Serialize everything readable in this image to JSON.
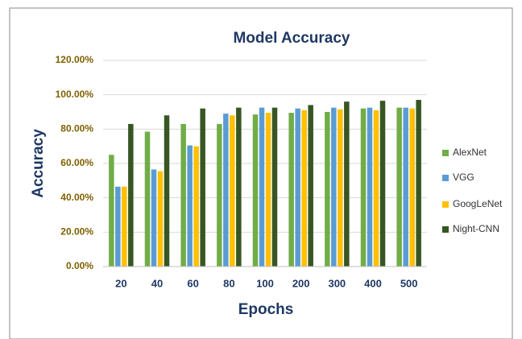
{
  "chart_data": {
    "type": "bar",
    "title": "Model Accuracy",
    "x_label": "Epochs",
    "y_label": "Accuracy",
    "categories": [
      "20",
      "40",
      "60",
      "80",
      "100",
      "200",
      "300",
      "400",
      "500"
    ],
    "series": [
      {
        "name": "AlexNet",
        "color": "#70ad47",
        "values": [
          65,
          78.5,
          83,
          83,
          88.5,
          89.5,
          90,
          92,
          92.5
        ]
      },
      {
        "name": "VGG",
        "color": "#5b9bd5",
        "values": [
          46.5,
          56.5,
          70.5,
          89,
          92.5,
          92,
          92.5,
          92.5,
          92.5
        ]
      },
      {
        "name": "GoogLeNet",
        "color": "#ffc000",
        "values": [
          46.5,
          55.5,
          70,
          88,
          89.5,
          91,
          91.5,
          91,
          92
        ]
      },
      {
        "name": "Night-CNN",
        "color": "#375623",
        "values": [
          83,
          88,
          92,
          92.5,
          92.5,
          94,
          96,
          96.5,
          97
        ]
      }
    ],
    "ylim": [
      0,
      120
    ],
    "yticks": [
      {
        "value": 0,
        "label": "0.00%"
      },
      {
        "value": 20,
        "label": "20.00%"
      },
      {
        "value": 40,
        "label": "40.00%"
      },
      {
        "value": 60,
        "label": "60.00%"
      },
      {
        "value": 80,
        "label": "80.00%"
      },
      {
        "value": 100,
        "label": "100.00%"
      },
      {
        "value": 120,
        "label": "120.00%"
      }
    ],
    "grid": true,
    "legend": "right"
  }
}
